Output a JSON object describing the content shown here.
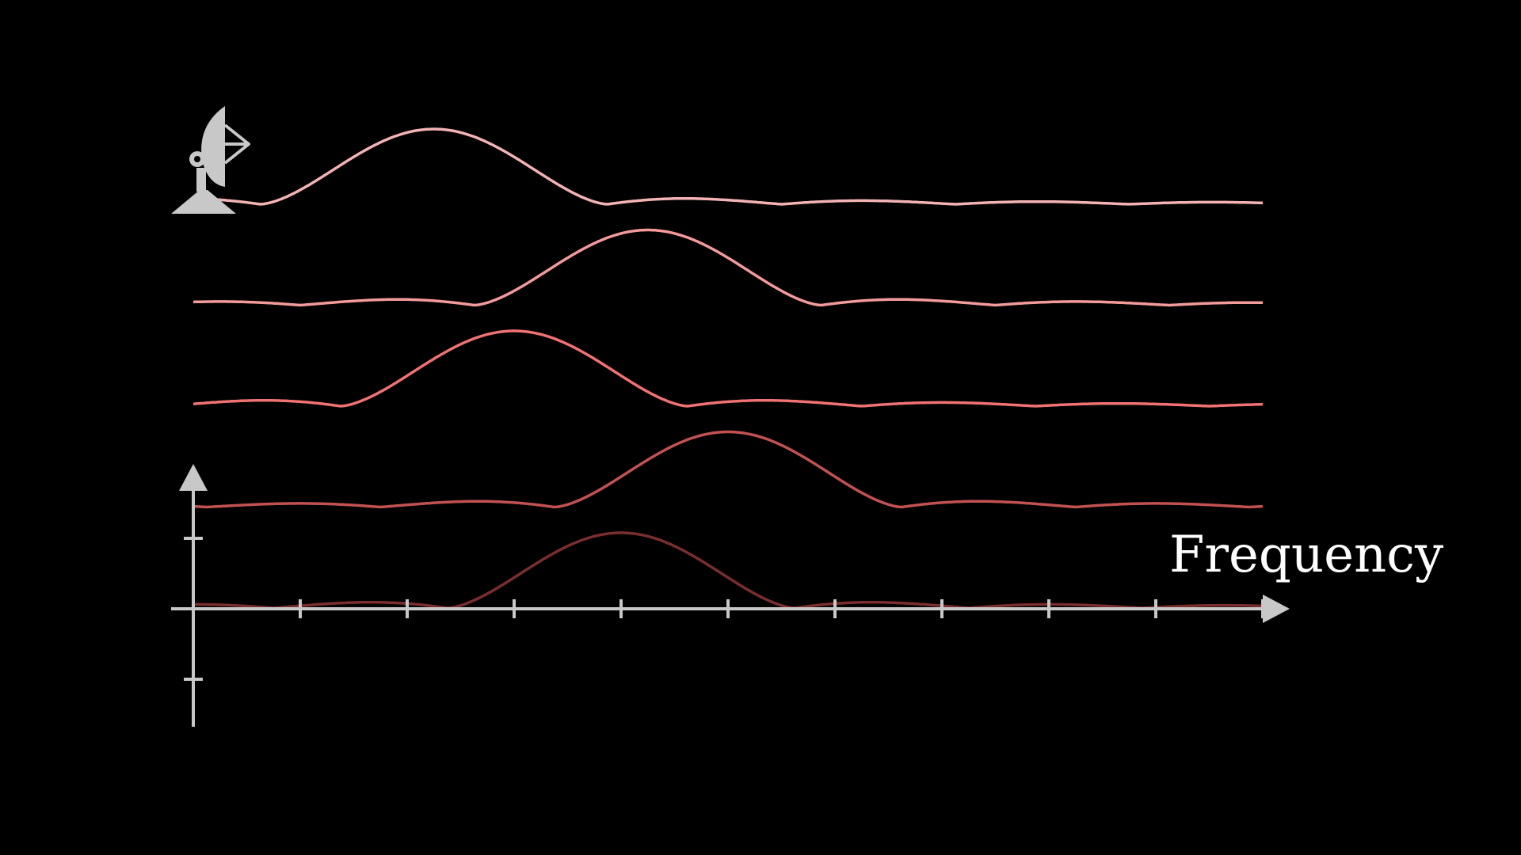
{
  "axis": {
    "x_label": "Frequency",
    "x_ticks": [
      1,
      2,
      3,
      4,
      5,
      6,
      7,
      8,
      9,
      10
    ],
    "x_range": [
      0,
      10
    ],
    "y_ticks": [
      1,
      -1
    ],
    "color": "#c8c8c8"
  },
  "icon": {
    "name": "satellite-dish-icon",
    "color": "#c8c8c8"
  },
  "curves": [
    {
      "color": "#f4b3b3",
      "center": 2.25,
      "width": 3.25
    },
    {
      "color": "#f39a9a",
      "center": 4.25,
      "width": 3.25
    },
    {
      "color": "#f07272",
      "center": 3.0,
      "width": 3.25
    },
    {
      "color": "#c25252",
      "center": 5.0,
      "width": 3.25
    },
    {
      "color": "#7a2e2e",
      "center": 4.0,
      "width": 3.25
    }
  ]
}
